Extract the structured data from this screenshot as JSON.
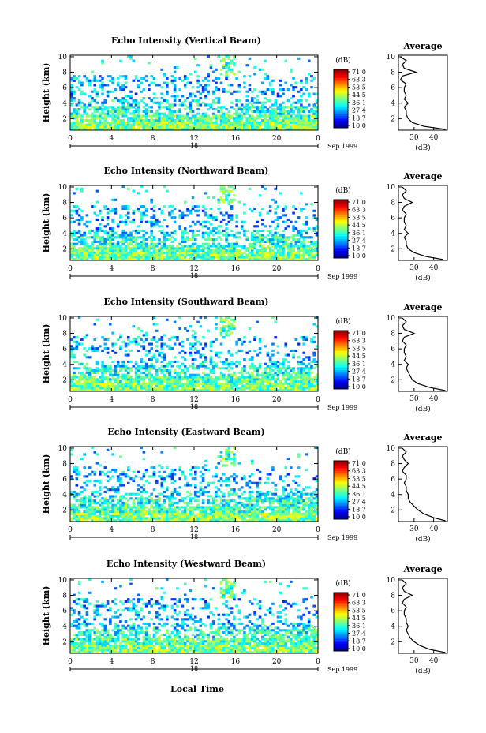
{
  "colorbar": {
    "unit": "(dB)",
    "labels": [
      "71.0",
      "63.3",
      "53.5",
      "44.5",
      "36.1",
      "27.4",
      "18.7",
      "10.0"
    ]
  },
  "date_suffix": "Sep 1999",
  "date_day": "18",
  "xlabel": "Local Time",
  "avg_title": "Average",
  "avg_unit": "(dB)",
  "chart_data": [
    {
      "type": "heatmap",
      "title": "Echo Intensity (Vertical Beam)",
      "ylabel": "Height (km)",
      "x_ticks": [
        "0",
        "4",
        "8",
        "12",
        "16",
        "20",
        "0"
      ],
      "y_ticks": [
        "2",
        "4",
        "6",
        "8",
        "10"
      ],
      "ylim": [
        0.5,
        10.2
      ],
      "avg_profile": {
        "x_ticks": [
          "30",
          "40"
        ],
        "xlim": [
          22,
          47
        ],
        "height": [
          0.6,
          1.0,
          1.5,
          2.0,
          2.5,
          3.0,
          3.5,
          4.0,
          4.5,
          5.0,
          5.5,
          6.0,
          6.5,
          7.0,
          7.5,
          8.0,
          8.5,
          9.0,
          9.5,
          10.0
        ],
        "db": [
          46,
          35,
          29,
          27,
          26,
          26,
          25,
          27,
          25,
          26,
          25,
          25,
          26,
          23,
          24,
          31,
          25,
          24,
          26,
          23
        ]
      }
    },
    {
      "type": "heatmap",
      "title": "Echo Intensity (Northward Beam)",
      "ylabel": "Height (km)",
      "x_ticks": [
        "0",
        "4",
        "8",
        "12",
        "16",
        "20",
        "0"
      ],
      "y_ticks": [
        "2",
        "4",
        "6",
        "8",
        "10"
      ],
      "ylim": [
        0.5,
        10.2
      ],
      "avg_profile": {
        "x_ticks": [
          "30",
          "40"
        ],
        "xlim": [
          22,
          47
        ],
        "height": [
          0.6,
          1.0,
          1.5,
          2.0,
          2.5,
          3.0,
          3.5,
          4.0,
          4.5,
          5.0,
          5.5,
          6.0,
          6.5,
          7.0,
          7.5,
          8.0,
          8.5,
          9.0,
          9.5,
          10.0
        ],
        "db": [
          45,
          36,
          30,
          27,
          26,
          26,
          25,
          27,
          25,
          26,
          25,
          25,
          26,
          24,
          25,
          29,
          25,
          24,
          26,
          24
        ]
      }
    },
    {
      "type": "heatmap",
      "title": "Echo Intensity (Southward Beam)",
      "ylabel": "Height (km)",
      "x_ticks": [
        "0",
        "4",
        "8",
        "12",
        "16",
        "20",
        "0"
      ],
      "y_ticks": [
        "2",
        "4",
        "6",
        "8",
        "10"
      ],
      "ylim": [
        0.5,
        10.2
      ],
      "avg_profile": {
        "x_ticks": [
          "30",
          "40"
        ],
        "xlim": [
          22,
          47
        ],
        "height": [
          0.6,
          1.0,
          1.5,
          2.0,
          2.5,
          3.0,
          3.5,
          4.0,
          4.5,
          5.0,
          5.5,
          6.0,
          6.5,
          7.0,
          7.5,
          8.0,
          8.5,
          9.0,
          9.5,
          10.0
        ],
        "db": [
          46,
          38,
          32,
          29,
          28,
          27,
          26,
          27,
          25,
          26,
          25,
          25,
          26,
          24,
          25,
          30,
          25,
          24,
          26,
          24
        ]
      }
    },
    {
      "type": "heatmap",
      "title": "Echo Intensity (Eastward Beam)",
      "ylabel": "Height (km)",
      "x_ticks": [
        "0",
        "4",
        "8",
        "12",
        "16",
        "20",
        "0"
      ],
      "y_ticks": [
        "2",
        "4",
        "6",
        "8",
        "10"
      ],
      "ylim": [
        0.5,
        10.2
      ],
      "avg_profile": {
        "x_ticks": [
          "30",
          "40"
        ],
        "xlim": [
          22,
          47
        ],
        "height": [
          0.6,
          1.0,
          1.5,
          2.0,
          2.5,
          3.0,
          3.5,
          4.0,
          4.5,
          5.0,
          5.5,
          6.0,
          6.5,
          7.0,
          7.5,
          8.0,
          8.5,
          9.0,
          9.5,
          10.0
        ],
        "db": [
          46,
          40,
          35,
          32,
          30,
          28,
          27,
          27,
          26,
          26,
          25,
          26,
          26,
          24,
          25,
          27,
          25,
          24,
          26,
          24
        ]
      }
    },
    {
      "type": "heatmap",
      "title": "Echo Intensity (Westward Beam)",
      "ylabel": "Height (km)",
      "x_ticks": [
        "0",
        "4",
        "8",
        "12",
        "16",
        "20",
        "0"
      ],
      "y_ticks": [
        "2",
        "4",
        "6",
        "8",
        "10"
      ],
      "ylim": [
        0.5,
        10.2
      ],
      "avg_profile": {
        "x_ticks": [
          "30",
          "40"
        ],
        "xlim": [
          22,
          47
        ],
        "height": [
          0.6,
          1.0,
          1.5,
          2.0,
          2.5,
          3.0,
          3.5,
          4.0,
          4.5,
          5.0,
          5.5,
          6.0,
          6.5,
          7.0,
          7.5,
          8.0,
          8.5,
          9.0,
          9.5,
          10.0
        ],
        "db": [
          46,
          38,
          33,
          30,
          28,
          27,
          26,
          27,
          26,
          26,
          25,
          25,
          26,
          24,
          25,
          29,
          25,
          24,
          26,
          24
        ]
      }
    }
  ]
}
